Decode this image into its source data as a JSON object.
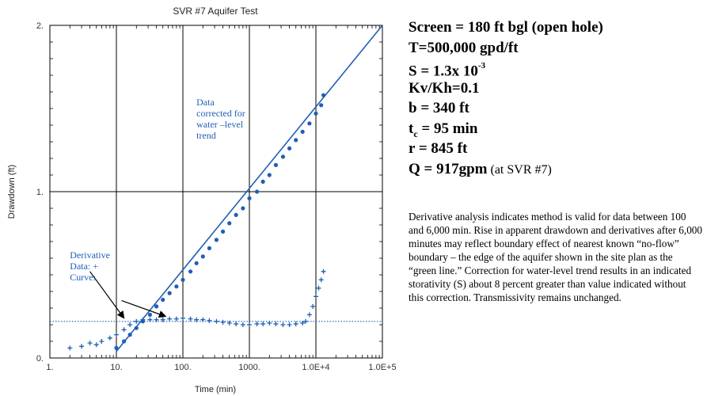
{
  "chart_data": {
    "type": "scatter",
    "title": "SVR #7 Aquifer Test",
    "xlabel": "Time (min)",
    "ylabel": "Drawdown (ft)",
    "xscale": "log",
    "xlim": [
      1,
      100000
    ],
    "ylim": [
      0,
      2
    ],
    "grid": true,
    "x_tick_labels": [
      "1.",
      "10.",
      "100.",
      "1000.",
      "1.0E+4",
      "1.0E+5"
    ],
    "y_tick_labels": [
      "0.",
      "1.",
      "2."
    ],
    "colors": {
      "data": "#1f5fb5",
      "grid": "#000000",
      "axis_text": "#333333"
    },
    "series": [
      {
        "name": "Data corrected for water-level trend",
        "marker": "dot",
        "x": [
          10,
          13,
          16,
          20,
          25,
          32,
          40,
          50,
          63,
          80,
          100,
          130,
          160,
          200,
          250,
          320,
          400,
          500,
          630,
          800,
          1000,
          1300,
          1600,
          2000,
          2500,
          3200,
          4000,
          5000,
          6300,
          8000,
          10000,
          12000,
          13000
        ],
        "y": [
          0.06,
          0.1,
          0.14,
          0.18,
          0.22,
          0.26,
          0.31,
          0.35,
          0.39,
          0.43,
          0.47,
          0.52,
          0.57,
          0.61,
          0.66,
          0.71,
          0.76,
          0.81,
          0.86,
          0.9,
          0.96,
          1.0,
          1.06,
          1.1,
          1.16,
          1.21,
          1.26,
          1.31,
          1.36,
          1.41,
          1.47,
          1.52,
          1.58
        ]
      },
      {
        "name": "Derivative Data",
        "marker": "+",
        "x": [
          2,
          3,
          4,
          5,
          6,
          8,
          10,
          13,
          16,
          20,
          25,
          32,
          40,
          50,
          63,
          80,
          100,
          130,
          160,
          200,
          250,
          320,
          400,
          500,
          630,
          800,
          1000,
          1300,
          1600,
          2000,
          2500,
          3200,
          4000,
          5000,
          6300,
          7000,
          8000,
          9000,
          10000,
          11000,
          12000,
          13000
        ],
        "y": [
          0.06,
          0.07,
          0.09,
          0.08,
          0.1,
          0.12,
          0.14,
          0.17,
          0.2,
          0.22,
          0.23,
          0.23,
          0.23,
          0.23,
          0.235,
          0.235,
          0.24,
          0.235,
          0.23,
          0.23,
          0.225,
          0.22,
          0.215,
          0.21,
          0.205,
          0.2,
          0.2,
          0.205,
          0.205,
          0.21,
          0.205,
          0.2,
          0.2,
          0.205,
          0.21,
          0.22,
          0.26,
          0.31,
          0.37,
          0.42,
          0.47,
          0.52
        ]
      },
      {
        "name": "Curve",
        "marker": "line",
        "x": [
          10,
          100000
        ],
        "y": [
          0.04,
          2.0
        ]
      },
      {
        "name": "Derivative Curve",
        "marker": "dotted-line",
        "x": [
          1,
          100000
        ],
        "y": [
          0.22,
          0.22
        ]
      }
    ],
    "annotations": [
      {
        "text_lines": [
          "Data",
          "corrected for",
          "water –level",
          "trend"
        ],
        "x": 160,
        "y": 1.52
      },
      {
        "text_lines": [
          "Derivative",
          "Data: +",
          "Curve:"
        ],
        "x": 2.0,
        "y": 0.6
      }
    ]
  },
  "params": {
    "screen": "Screen = 180 ft bgl (open hole)",
    "T": "T=500,000 gpd/ft",
    "S_base": "S = 1.3x 10",
    "S_exp": "-3",
    "kvkh": "Kv/Kh=0.1",
    "b": "b = 340 ft",
    "tc_t": "t",
    "tc_sub": "c",
    "tc_rest": " = 95 min",
    "r": "r = 845 ft",
    "Q": "Q = 917gpm",
    "Q_note": " (at SVR #7)"
  },
  "note": "Derivative analysis indicates method is valid for data between 100 and 6,000 min. Rise in apparent drawdown and derivatives after 6,000 minutes may reflect boundary effect of nearest known “no-flow” boundary – the edge of the aquifer shown in the site plan as the “green line.” Correction for water-level trend results in an indicated storativity (S) about 8 percent greater than value indicated without this correction. Transmissivity remains unchanged."
}
